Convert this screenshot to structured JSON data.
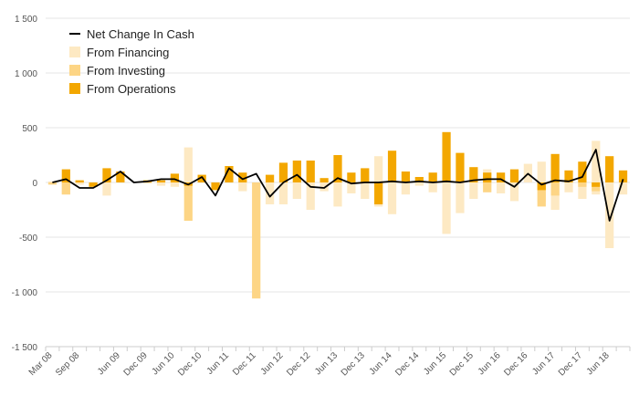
{
  "chart_data": {
    "type": "bar",
    "title": "",
    "xlabel": "",
    "ylabel": "",
    "ylim": [
      -1500,
      1500
    ],
    "y_ticks": [
      1500,
      1000,
      500,
      0,
      -500,
      -1000,
      -1500
    ],
    "y_tick_labels": [
      "1 500",
      "1 000",
      "500",
      "0",
      "-500",
      "-1 000",
      "-1 500"
    ],
    "grid": "horizontal",
    "legend_position": "top-left",
    "x_tick_labels": [
      {
        "index": 0,
        "label": "Mar 08"
      },
      {
        "index": 2,
        "label": "Sep 08"
      },
      {
        "index": 5,
        "label": "Jun 09"
      },
      {
        "index": 7,
        "label": "Dec 09"
      },
      {
        "index": 9,
        "label": "Jun 10"
      },
      {
        "index": 11,
        "label": "Dec 10"
      },
      {
        "index": 13,
        "label": "Jun 11"
      },
      {
        "index": 15,
        "label": "Dec 11"
      },
      {
        "index": 17,
        "label": "Jun 12"
      },
      {
        "index": 19,
        "label": "Dec 12"
      },
      {
        "index": 21,
        "label": "Jun 13"
      },
      {
        "index": 23,
        "label": "Dec 13"
      },
      {
        "index": 25,
        "label": "Jun 14"
      },
      {
        "index": 27,
        "label": "Dec 14"
      },
      {
        "index": 29,
        "label": "Jun 15"
      },
      {
        "index": 31,
        "label": "Dec 15"
      },
      {
        "index": 33,
        "label": "Jun 16"
      },
      {
        "index": 35,
        "label": "Dec 16"
      },
      {
        "index": 37,
        "label": "Jun 17"
      },
      {
        "index": 39,
        "label": "Dec 17"
      },
      {
        "index": 41,
        "label": "Jun 18"
      }
    ],
    "series": [
      {
        "name": "From Financing",
        "kind": "bar",
        "color": "#fde9c3",
        "values": [
          10,
          10,
          -20,
          0,
          -120,
          0,
          0,
          0,
          0,
          0,
          320,
          0,
          0,
          0,
          -80,
          0,
          -200,
          -200,
          -150,
          -250,
          -80,
          -220,
          -100,
          -150,
          240,
          -290,
          -110,
          -30,
          -90,
          -470,
          -280,
          -150,
          120,
          -100,
          -170,
          170,
          190,
          -250,
          -90,
          -150,
          380,
          -600,
          0
        ],
        "neg_values": [
          0,
          -110,
          0,
          -40,
          0,
          0,
          0,
          -10,
          -30,
          -40,
          0,
          0,
          0,
          0,
          0,
          0,
          0,
          0,
          0,
          0,
          0,
          0,
          0,
          0,
          -220,
          0,
          0,
          0,
          0,
          0,
          0,
          0,
          -30,
          0,
          0,
          0,
          -180,
          0,
          0,
          0,
          -110,
          0,
          -110
        ]
      },
      {
        "name": "From Investing",
        "kind": "bar",
        "color": "#fdd585",
        "values": [
          -20,
          -110,
          0,
          0,
          0,
          0,
          0,
          0,
          0,
          0,
          -350,
          0,
          0,
          0,
          0,
          -1060,
          0,
          0,
          0,
          0,
          0,
          0,
          0,
          0,
          0,
          0,
          0,
          0,
          0,
          0,
          0,
          0,
          -90,
          0,
          0,
          0,
          -220,
          -120,
          0,
          -40,
          -80,
          0,
          0
        ]
      },
      {
        "name": "From Operations",
        "kind": "bar",
        "color": "#f3a700",
        "values": [
          0,
          120,
          20,
          -40,
          130,
          100,
          0,
          20,
          20,
          80,
          -30,
          70,
          -70,
          150,
          90,
          0,
          70,
          180,
          200,
          200,
          40,
          250,
          90,
          130,
          -200,
          290,
          100,
          50,
          90,
          460,
          270,
          140,
          90,
          90,
          120,
          0,
          -70,
          260,
          110,
          190,
          -40,
          240,
          110
        ]
      },
      {
        "name": "Net Change In Cash",
        "kind": "line",
        "color": "#000000",
        "values": [
          0,
          30,
          -50,
          -50,
          20,
          100,
          0,
          10,
          30,
          30,
          -20,
          50,
          -120,
          130,
          30,
          80,
          -130,
          0,
          70,
          -40,
          -50,
          40,
          -10,
          0,
          0,
          10,
          0,
          10,
          0,
          10,
          0,
          20,
          30,
          30,
          -40,
          80,
          -20,
          20,
          10,
          50,
          300,
          -350,
          30
        ]
      }
    ]
  }
}
